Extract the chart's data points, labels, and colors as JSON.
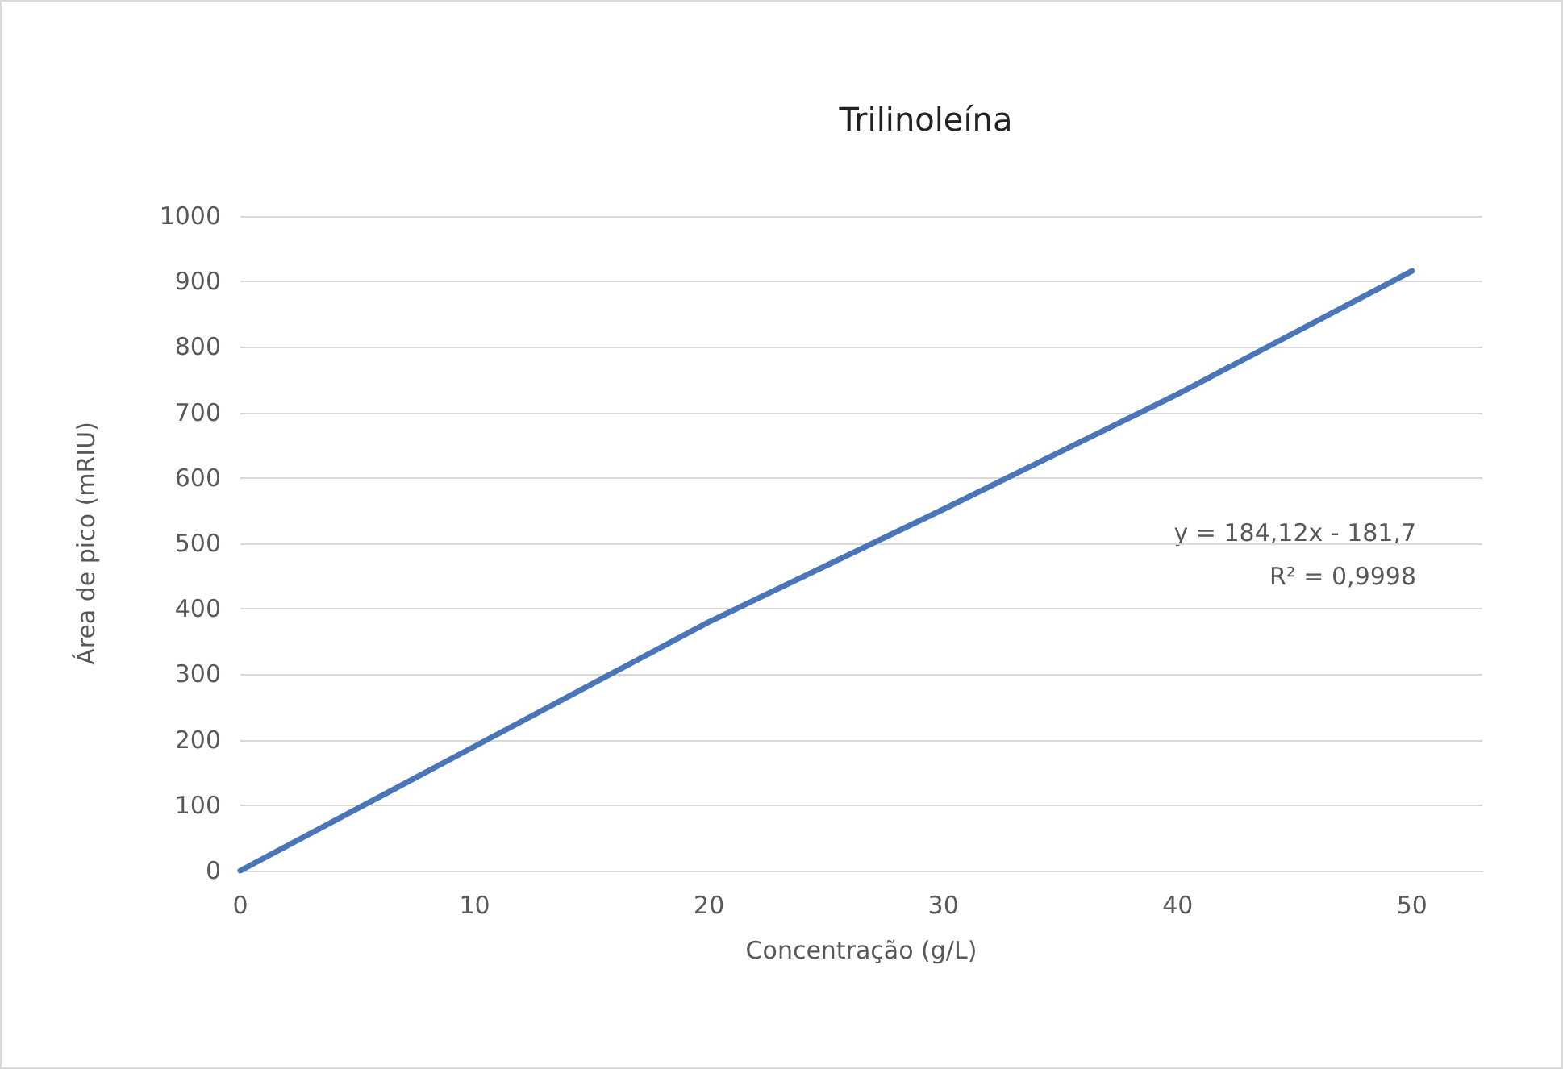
{
  "chart_data": {
    "type": "line",
    "title": "Trilinoleína",
    "xlabel": "Concentração (g/L)",
    "ylabel": "Área de pico (mRIU)",
    "annotations": [
      "y = 184,12x - 181,7",
      "R² = 0,9998"
    ],
    "x": [
      0,
      10,
      20,
      30,
      40,
      50
    ],
    "series": [
      {
        "color": "#4a76b8",
        "values": [
          0,
          190,
          380,
          552,
          728,
          916
        ]
      }
    ],
    "xlim": [
      0,
      53
    ],
    "xticks": [
      0,
      10,
      20,
      30,
      40,
      50
    ],
    "ylim": [
      0,
      1000
    ],
    "yticks": [
      0,
      100,
      200,
      300,
      400,
      500,
      600,
      700,
      800,
      900,
      1000
    ],
    "grid": "y",
    "marker": "none",
    "line_style": "solid"
  }
}
